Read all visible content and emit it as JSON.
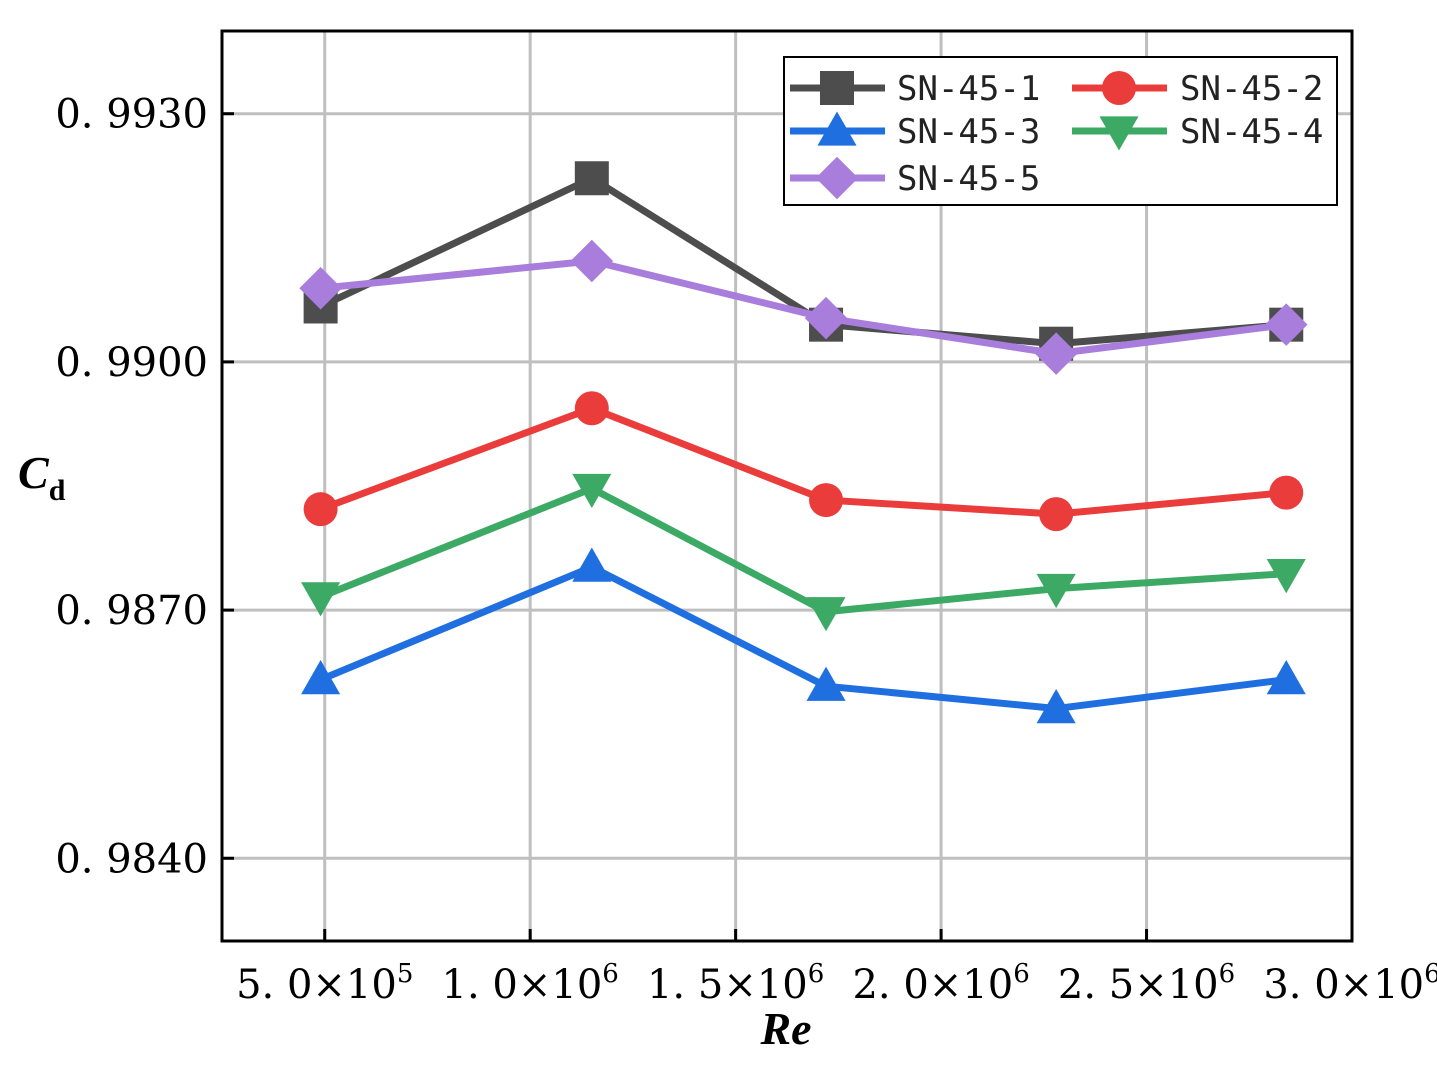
{
  "chart_data": {
    "type": "line",
    "title": "",
    "xlabel": "Re",
    "ylabel": {
      "main": "C",
      "sub": "d"
    },
    "xlim": [
      250000,
      3000000
    ],
    "ylim": [
      0.983,
      0.994
    ],
    "xticks": [
      {
        "value": 500000,
        "mantissa": "5.0",
        "exponent": "5"
      },
      {
        "value": 1000000,
        "mantissa": "1.0",
        "exponent": "6"
      },
      {
        "value": 1500000,
        "mantissa": "1.5",
        "exponent": "6"
      },
      {
        "value": 2000000,
        "mantissa": "2.0",
        "exponent": "6"
      },
      {
        "value": 2500000,
        "mantissa": "2.5",
        "exponent": "6"
      },
      {
        "value": 3000000,
        "mantissa": "3.0",
        "exponent": "6"
      }
    ],
    "times_sign": "×",
    "yticks": [
      {
        "value": 0.984,
        "label": "0. 9840"
      },
      {
        "value": 0.987,
        "label": "0. 9870"
      },
      {
        "value": 0.99,
        "label": "0. 9900"
      },
      {
        "value": 0.993,
        "label": "0. 9930"
      }
    ],
    "grid": true,
    "legend_position": "top-right",
    "x": [
      490000,
      1150000,
      1720000,
      2280000,
      2840000
    ],
    "series": [
      {
        "name": "SN-45-1",
        "color": "#4d4d4d",
        "marker": "square",
        "values": [
          0.99067,
          0.99222,
          0.99045,
          0.99022,
          0.99045
        ]
      },
      {
        "name": "SN-45-2",
        "color": "#eb3c3c",
        "marker": "circle",
        "values": [
          0.98822,
          0.98944,
          0.98833,
          0.98816,
          0.98842
        ]
      },
      {
        "name": "SN-45-3",
        "color": "#1f6fe0",
        "marker": "triangle-up",
        "values": [
          0.98616,
          0.98752,
          0.98608,
          0.98581,
          0.98616
        ]
      },
      {
        "name": "SN-45-4",
        "color": "#3caa64",
        "marker": "triangle-down",
        "values": [
          0.98716,
          0.98847,
          0.98698,
          0.98726,
          0.98744
        ]
      },
      {
        "name": "SN-45-5",
        "color": "#a87ddc",
        "marker": "diamond",
        "values": [
          0.99089,
          0.99122,
          0.99053,
          0.9901,
          0.99045
        ]
      }
    ]
  }
}
